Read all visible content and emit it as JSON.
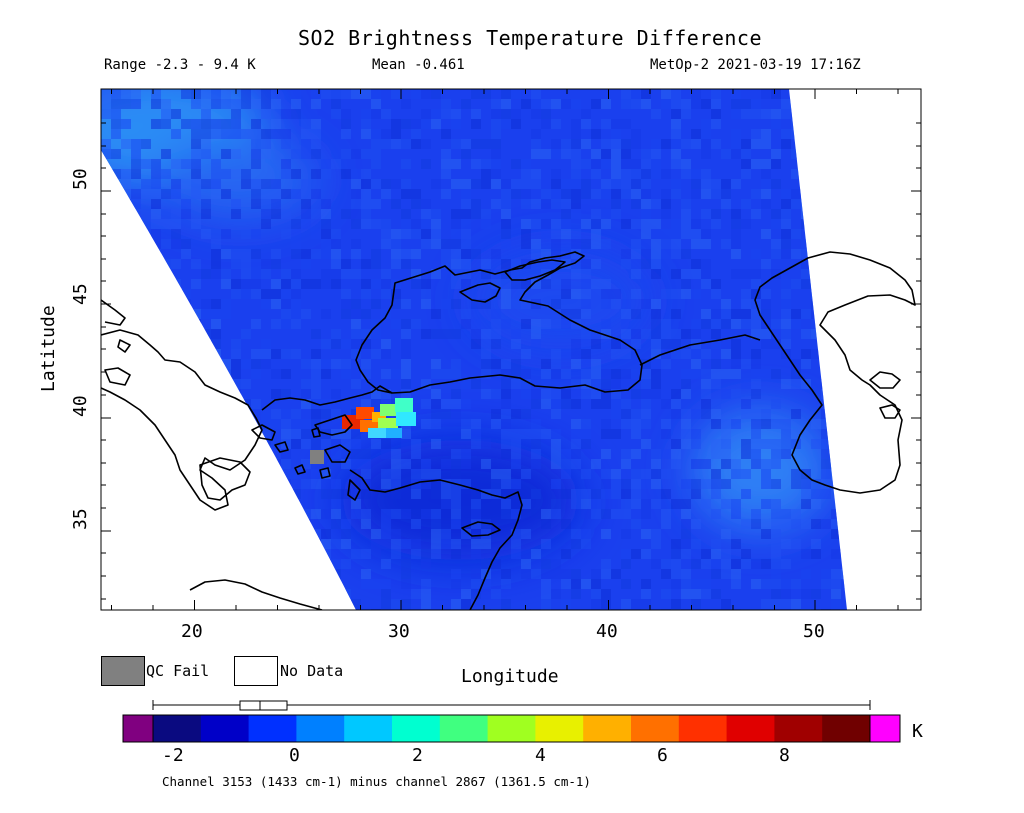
{
  "header": {
    "title": "SO2 Brightness Temperature Difference",
    "range": "Range -2.3 - 9.4 K",
    "mean": "Mean -0.461",
    "satellite": "MetOp-2 2021-03-19 17:16Z"
  },
  "axes": {
    "xlabel": "Longitude",
    "ylabel": "Latitude",
    "xticks": [
      "20",
      "30",
      "40",
      "50"
    ],
    "yticks": [
      "50",
      "45",
      "40",
      "35"
    ]
  },
  "legend": {
    "qc_fail": "QC Fail",
    "no_data": "No Data",
    "qc_fail_color": "#808080",
    "no_data_color": "#ffffff"
  },
  "colorbar": {
    "ticks": [
      "-2",
      "0",
      "2",
      "4",
      "6",
      "8"
    ],
    "unit": "K",
    "under_color": "#800080",
    "over_color": "#ff00ff",
    "caption": "Channel 3153 (1433 cm-1) minus channel 2867 (1361.5 cm-1)"
  },
  "map": {
    "lon_range": [
      15.5,
      55
    ],
    "lat_range": [
      31.3,
      54.5
    ],
    "plume_center_lon": 29,
    "plume_center_lat": 39.8,
    "plume_max_k": 9.4,
    "background_mean_k": -0.461
  }
}
